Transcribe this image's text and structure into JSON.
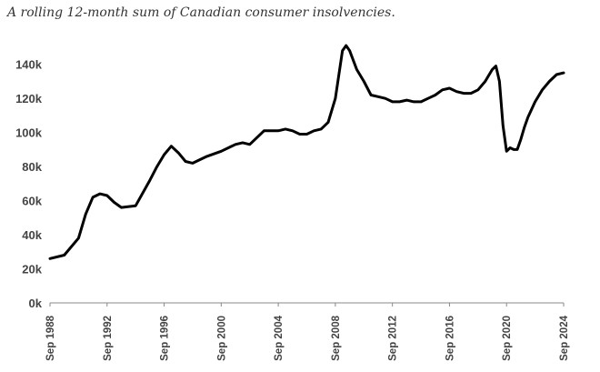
{
  "chart_data": {
    "type": "line",
    "subtitle": "A rolling 12-month sum of Canadian consumer insolvencies.",
    "title": "",
    "xlabel": "",
    "ylabel": "",
    "xlim": [
      "Sep 1988",
      "Sep 2024"
    ],
    "ylim": [
      0,
      150000
    ],
    "yticks": [
      0,
      20000,
      40000,
      60000,
      80000,
      100000,
      120000,
      140000
    ],
    "ytick_labels": [
      "0k",
      "20k",
      "40k",
      "60k",
      "80k",
      "100k",
      "120k",
      "140k"
    ],
    "xtick_labels": [
      "Sep 1988",
      "Sep 1992",
      "Sep 1996",
      "Sep 2000",
      "Sep 2004",
      "Sep 2008",
      "Sep 2012",
      "Sep 2016",
      "Sep 2020",
      "Sep 2024"
    ],
    "grid": false,
    "legend": "none",
    "line_color": "#000000",
    "series": [
      {
        "x": [
          "Sep 1988",
          "Sep 1989",
          "Sep 1990",
          "Mar 1991",
          "Sep 1991",
          "Mar 1992",
          "Sep 1992",
          "Mar 1993",
          "Sep 1993",
          "Sep 1994",
          "Sep 1995",
          "Mar 1996",
          "Sep 1996",
          "Mar 1997",
          "Sep 1997",
          "Mar 1998",
          "Sep 1998",
          "Sep 1999",
          "Sep 2000",
          "Sep 2001",
          "Mar 2002",
          "Sep 2002",
          "Mar 2003",
          "Sep 2003",
          "Mar 2004",
          "Sep 2004",
          "Mar 2005",
          "Sep 2005",
          "Mar 2006",
          "Sep 2006",
          "Mar 2007",
          "Sep 2007",
          "Mar 2008",
          "Sep 2008",
          "Mar 2009",
          "Jun 2009",
          "Sep 2009",
          "Mar 2010",
          "Sep 2010",
          "Mar 2011",
          "Sep 2011",
          "Mar 2012",
          "Sep 2012",
          "Mar 2013",
          "Sep 2013",
          "Mar 2014",
          "Sep 2014",
          "Mar 2015",
          "Sep 2015",
          "Mar 2016",
          "Sep 2016",
          "Mar 2017",
          "Sep 2017",
          "Mar 2018",
          "Sep 2018",
          "Mar 2019",
          "Sep 2019",
          "Dec 2019",
          "Mar 2020",
          "Jun 2020",
          "Sep 2020",
          "Dec 2020",
          "Mar 2021",
          "Jun 2021",
          "Sep 2021",
          "Dec 2021",
          "Mar 2022",
          "Sep 2022",
          "Mar 2023",
          "Sep 2023",
          "Mar 2024",
          "Sep 2024"
        ],
        "values": [
          26000,
          28000,
          38000,
          52000,
          62000,
          64000,
          63000,
          59000,
          56000,
          57000,
          72000,
          80000,
          87000,
          92000,
          88000,
          83000,
          82000,
          86000,
          89000,
          93000,
          94000,
          93000,
          97000,
          101000,
          101000,
          101000,
          102000,
          101000,
          99000,
          99000,
          101000,
          102000,
          106000,
          120000,
          148000,
          151000,
          148000,
          137000,
          130000,
          122000,
          121000,
          120000,
          118000,
          118000,
          119000,
          118000,
          118000,
          120000,
          122000,
          125000,
          126000,
          124000,
          123000,
          123000,
          125000,
          130000,
          137000,
          139000,
          130000,
          104000,
          89000,
          91000,
          90000,
          90000,
          96000,
          103000,
          109000,
          118000,
          125000,
          130000,
          134000,
          135000
        ]
      }
    ]
  }
}
